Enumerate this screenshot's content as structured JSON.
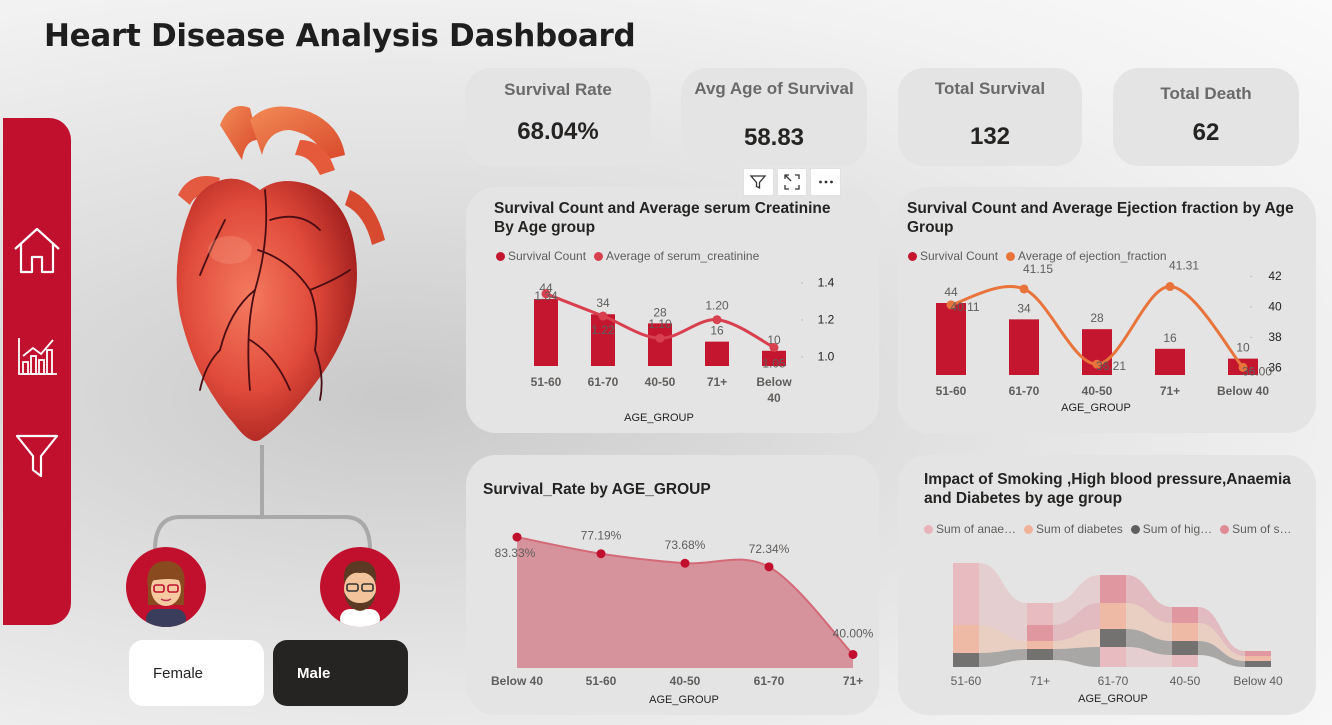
{
  "page": {
    "title": "Heart Disease Analysis Dashboard"
  },
  "sidebar": {
    "items": [
      {
        "name": "home",
        "icon": "home-icon"
      },
      {
        "name": "analytics",
        "icon": "bar-chart-icon"
      },
      {
        "name": "filter",
        "icon": "filter-icon"
      }
    ]
  },
  "gender_filter": {
    "female_label": "Female",
    "male_label": "Male",
    "selected": "Male"
  },
  "kpis": [
    {
      "label": "Survival Rate",
      "value": "68.04%"
    },
    {
      "label": "Avg Age of Survival",
      "value": "58.83"
    },
    {
      "label": "Total Survival",
      "value": "132"
    },
    {
      "label": "Total Death",
      "value": "62"
    }
  ],
  "visual_header": {
    "icons": [
      "filter-icon",
      "focus-mode-icon",
      "more-options-icon"
    ]
  },
  "colors": {
    "accent": "#c0102d",
    "bar": "#c4162f",
    "line_red": "#d9404f",
    "line_orange": "#e8743b",
    "area": "#d4858e"
  },
  "chart_data": [
    {
      "type": "bar",
      "title": "Survival Count and Average serum Creatinine By Age group",
      "xlabel": "AGE_GROUP",
      "categories": [
        "51-60",
        "61-70",
        "40-50",
        "71+",
        "Below 40"
      ],
      "category_lines": [
        [
          "51-60"
        ],
        [
          "61-70"
        ],
        [
          "40-50"
        ],
        [
          "71+"
        ],
        [
          "Below",
          "40"
        ]
      ],
      "series": [
        {
          "name": "Survival Count",
          "kind": "bar",
          "values": [
            44,
            34,
            28,
            16,
            10
          ]
        },
        {
          "name": "Average of serum_creatinine",
          "kind": "line",
          "values": [
            1.34,
            1.22,
            1.1,
            1.2,
            1.05
          ]
        }
      ],
      "line_labels": [
        "1.34",
        "1.22",
        "1.10",
        "1.20",
        "1.05"
      ],
      "y2_ticks": [
        "1.4",
        "1.2",
        "1.0"
      ],
      "y2lim": [
        0.95,
        1.42
      ]
    },
    {
      "type": "bar",
      "title": "Survival Count and Average Ejection fraction by Age Group",
      "xlabel": "AGE_GROUP",
      "categories": [
        "51-60",
        "61-70",
        "40-50",
        "71+",
        "Below 40"
      ],
      "series": [
        {
          "name": "Survival Count",
          "kind": "bar",
          "values": [
            44,
            34,
            28,
            16,
            10
          ]
        },
        {
          "name": "Average of ejection_fraction",
          "kind": "line",
          "values": [
            40.11,
            41.15,
            36.21,
            41.31,
            36.0
          ]
        }
      ],
      "line_labels": [
        "40.11",
        "41.15",
        "36.21",
        "41.31",
        "36.00"
      ],
      "y2_ticks": [
        "42",
        "40",
        "38",
        "36"
      ],
      "y2lim": [
        35.5,
        42.2
      ]
    },
    {
      "type": "area",
      "title": "Survival_Rate by AGE_GROUP",
      "xlabel": "AGE_GROUP",
      "categories": [
        "Below 40",
        "51-60",
        "40-50",
        "61-70",
        "71+"
      ],
      "values": [
        83.33,
        77.19,
        73.68,
        72.34,
        40.0
      ],
      "labels": [
        "83.33%",
        "77.19%",
        "73.68%",
        "72.34%",
        "40.00%"
      ],
      "ylim": [
        35,
        90
      ]
    },
    {
      "type": "bar",
      "title": "Impact of Smoking ,High blood pressure,Anaemia and Diabetes by age group",
      "xlabel": "AGE_GROUP",
      "categories": [
        "51-60",
        "71+",
        "61-70",
        "40-50",
        "Below 40"
      ],
      "series": [
        {
          "name": "Sum of anae…",
          "color": "#e7b4b9"
        },
        {
          "name": "Sum of diabetes",
          "color": "#f0b39a"
        },
        {
          "name": "Sum of hig…",
          "color": "#605e5c"
        },
        {
          "name": "Sum of s…",
          "color": "#e08a94"
        }
      ]
    }
  ]
}
